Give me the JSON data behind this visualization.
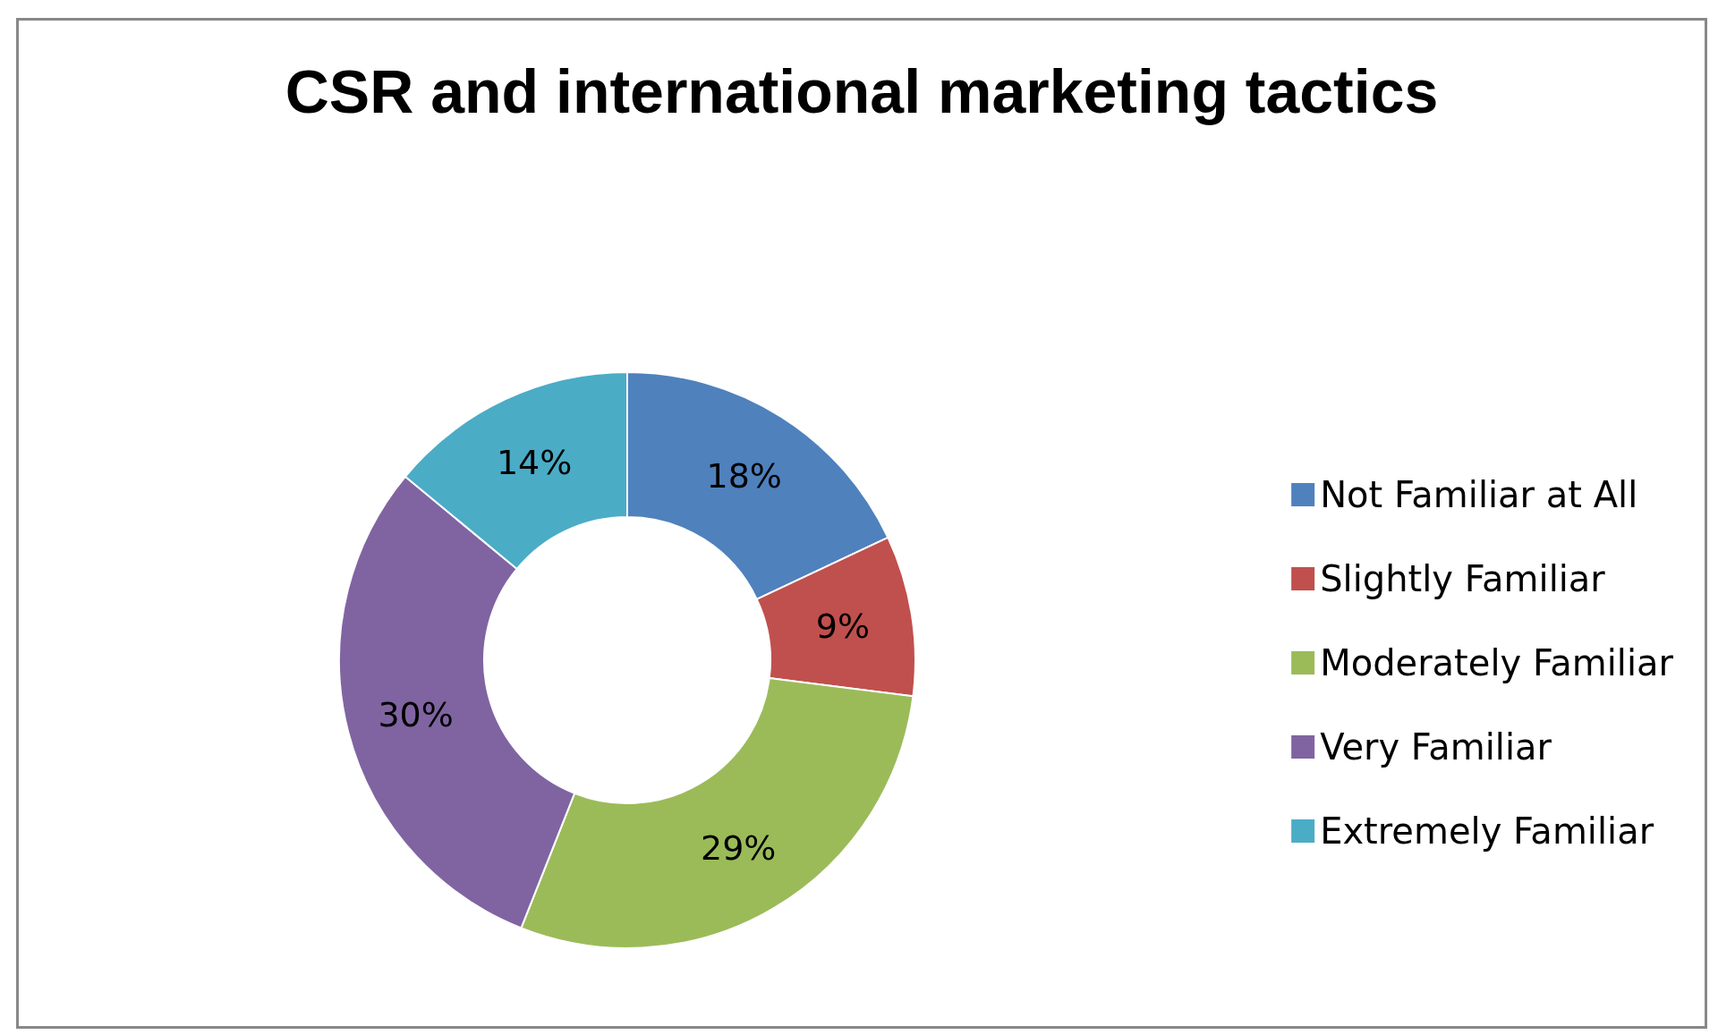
{
  "chart_data": {
    "type": "donut",
    "title": "CSR and international marketing tactics",
    "categories": [
      "Not Familiar at All",
      "Slightly Familiar",
      "Moderately Familiar",
      "Very Familiar",
      "Extremely Familiar"
    ],
    "values": [
      18,
      9,
      29,
      30,
      14
    ],
    "value_labels": [
      "18%",
      "9%",
      "29%",
      "30%",
      "14%"
    ],
    "colors": [
      "#4f81bd",
      "#c0504d",
      "#9bbb59",
      "#8064a2",
      "#4bacc6"
    ],
    "legend": "right"
  }
}
